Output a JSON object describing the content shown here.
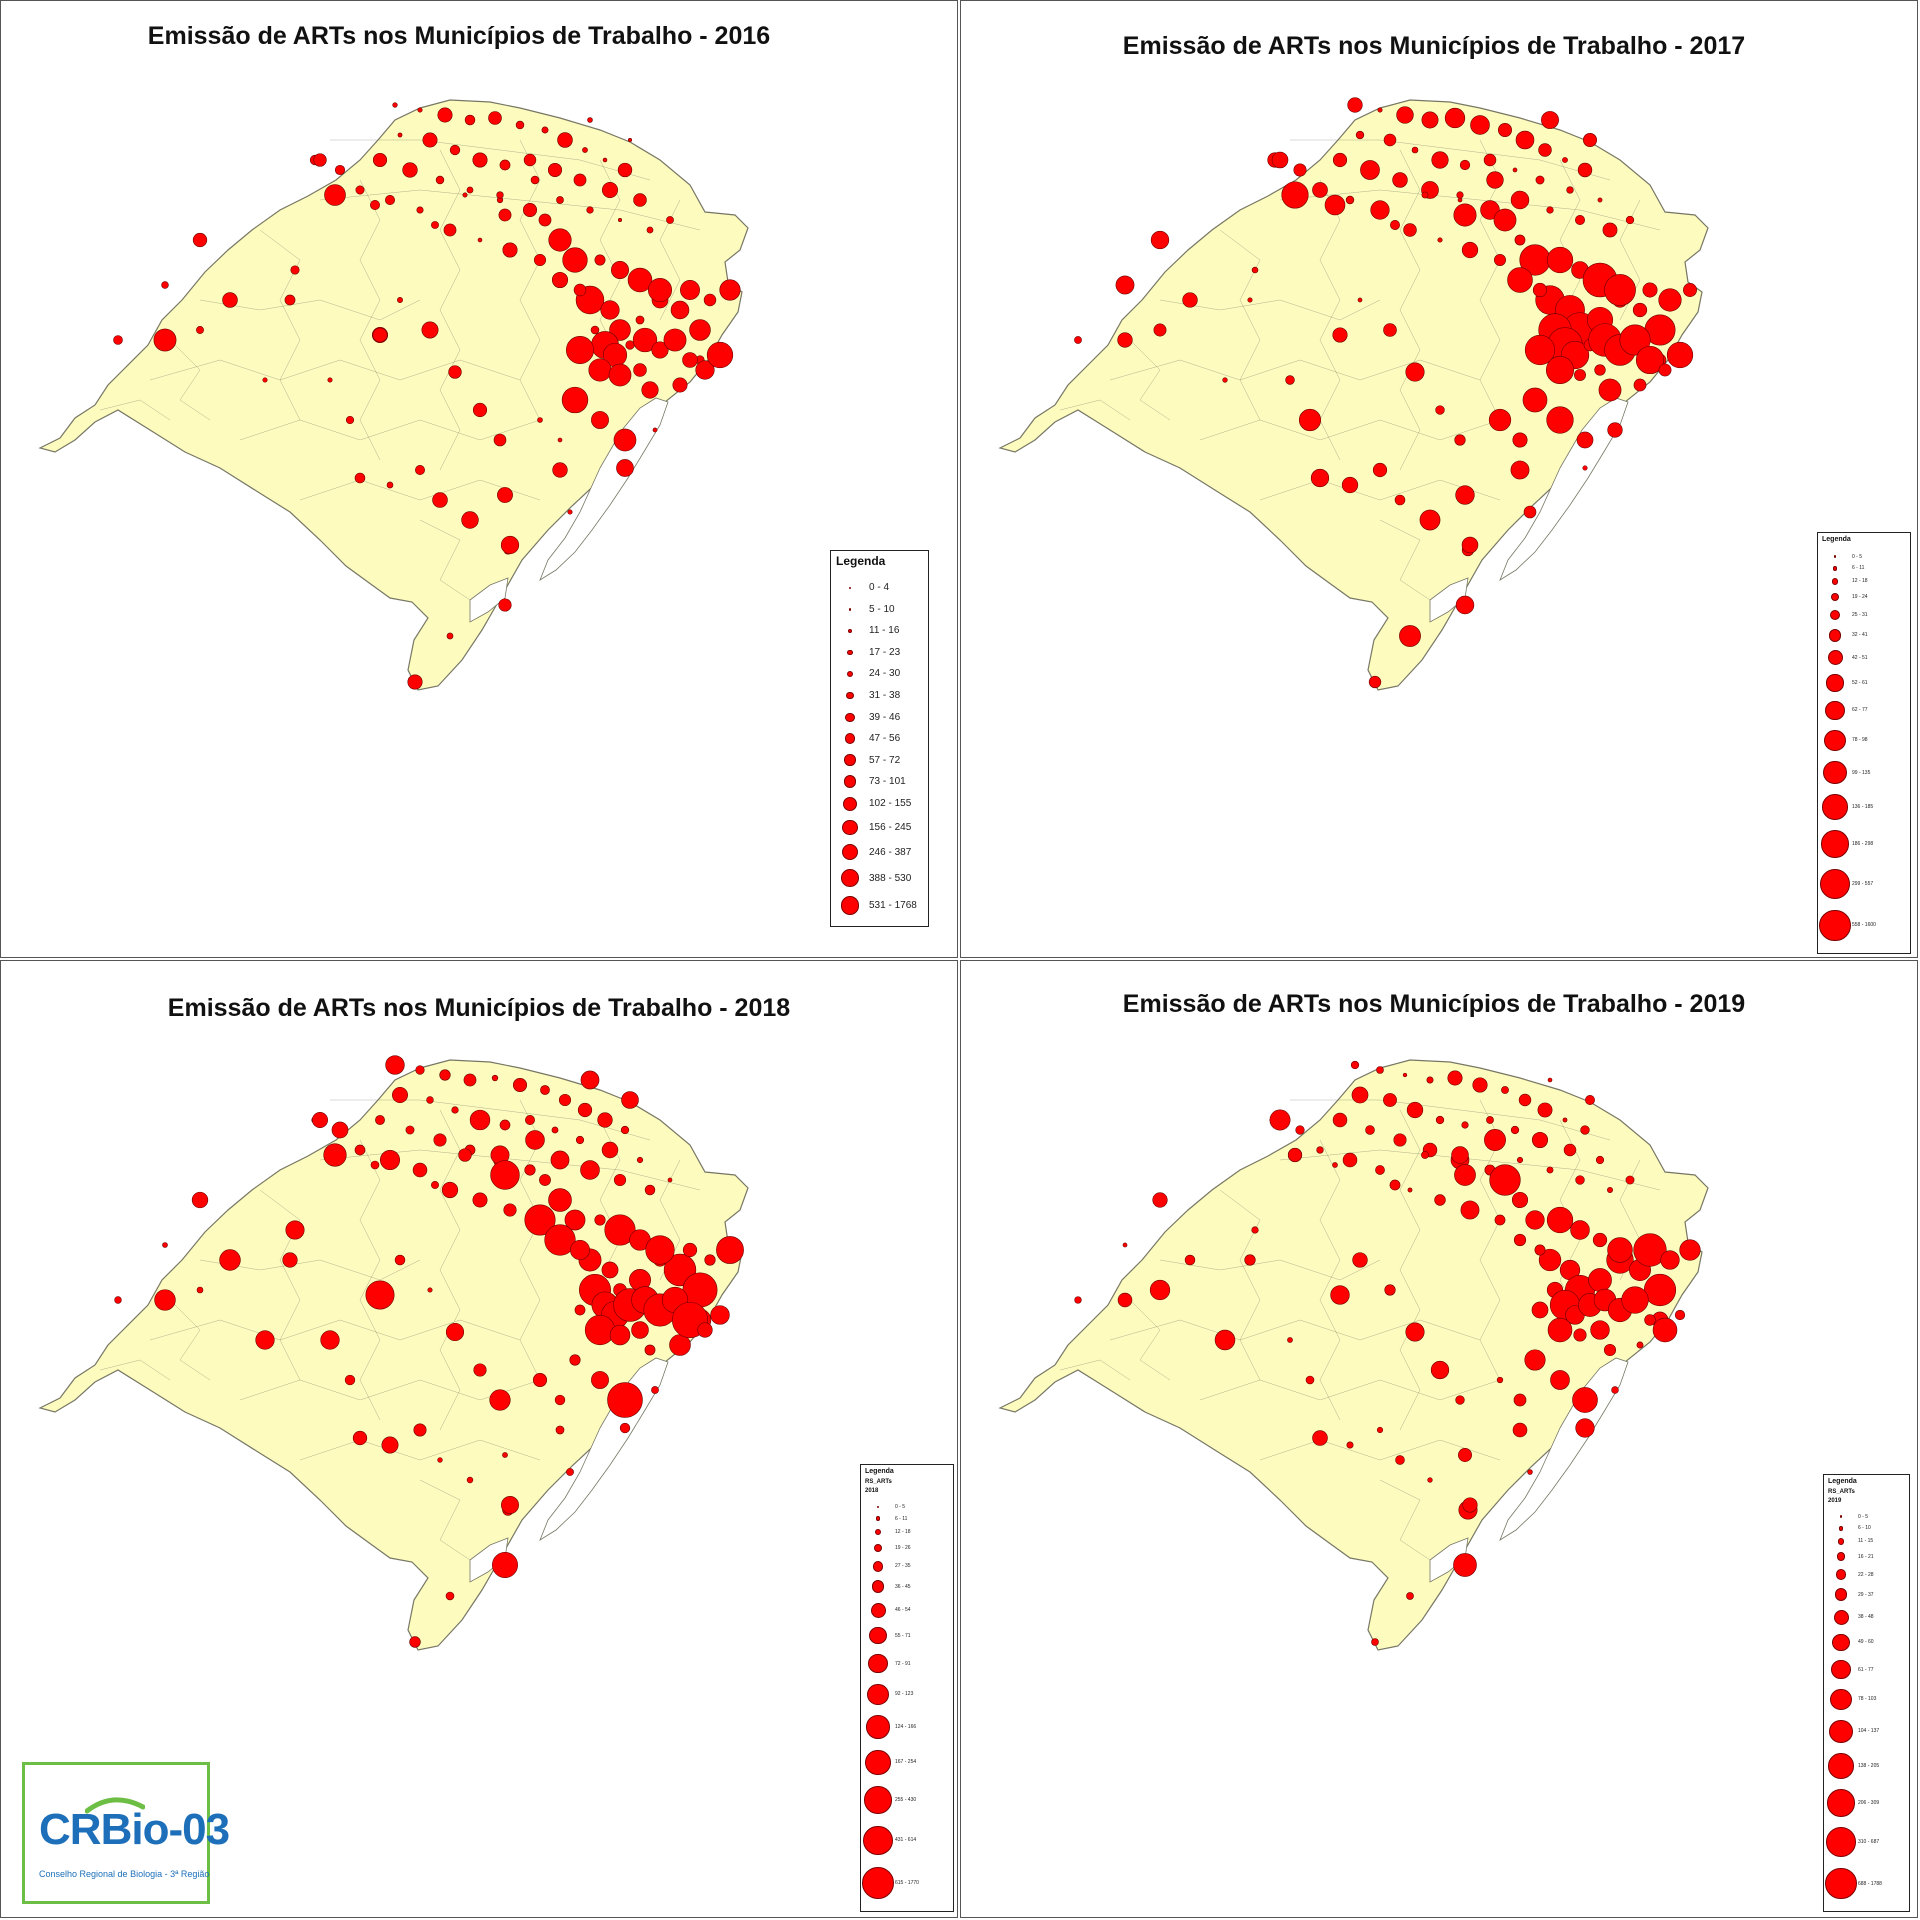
{
  "colors": {
    "land": "#fdfbbd",
    "border": "#777766",
    "bubble": "#ff0000",
    "bubble_stroke": "#6b0000",
    "water": "#ffffff"
  },
  "maps": [
    {
      "title": "Emissão de ARTs nos Municípios de Trabalho - 2016",
      "legend": {
        "title": "Legenda",
        "subtitle": "",
        "year": "",
        "classes": [
          "0 - 4",
          "5 - 10",
          "11 - 16",
          "17 - 23",
          "24 - 30",
          "31 - 38",
          "39 - 46",
          "47 - 56",
          "57 - 72",
          "73 - 101",
          "102 - 155",
          "156 - 245",
          "246 - 387",
          "388 - 530",
          "531 - 1768"
        ]
      },
      "scale": 0.78
    },
    {
      "title": "Emissão de ARTs nos Municípios de Trabalho - 2017",
      "legend": {
        "title": "Legenda",
        "subtitle": "",
        "year": "",
        "classes": [
          "0 - 5",
          "6 - 11",
          "12 - 18",
          "19 - 24",
          "25 - 31",
          "32 - 41",
          "42 - 51",
          "52 - 61",
          "62 - 77",
          "78 - 98",
          "99 - 135",
          "136 - 185",
          "186 - 298",
          "299 - 557",
          "558 - 1600"
        ]
      },
      "scale": 1.0
    },
    {
      "title": "Emissão de ARTs nos Municípios de Trabalho - 2018",
      "legend": {
        "title": "Legenda",
        "subtitle": "RS_ARTs",
        "year": "2018",
        "classes": [
          "0 - 5",
          "6 - 11",
          "12 - 18",
          "19 - 26",
          "27 - 35",
          "36 - 45",
          "46 - 54",
          "55 - 71",
          "72 - 91",
          "92 - 123",
          "124 - 166",
          "167 - 254",
          "255 - 430",
          "431 - 614",
          "615 - 1770"
        ]
      },
      "scale": 1.0
    },
    {
      "title": "Emissão de ARTs nos Municípios de Trabalho - 2019",
      "legend": {
        "title": "Legenda",
        "subtitle": "RS_ARTs",
        "year": "2019",
        "classes": [
          "0 - 5",
          "6 - 10",
          "11 - 15",
          "16 - 21",
          "22 - 28",
          "29 - 37",
          "38 - 48",
          "49 - 60",
          "61 - 77",
          "78 - 103",
          "104 - 137",
          "138 - 205",
          "206 - 309",
          "310 - 687",
          "688 - 1788"
        ]
      },
      "scale": 0.92
    }
  ],
  "logo": {
    "name_prefix": "CR",
    "name_bio": "Bio",
    "name_suffix": "-03",
    "subtitle": "Conselho Regional de Biologia - 3ª Região"
  }
}
